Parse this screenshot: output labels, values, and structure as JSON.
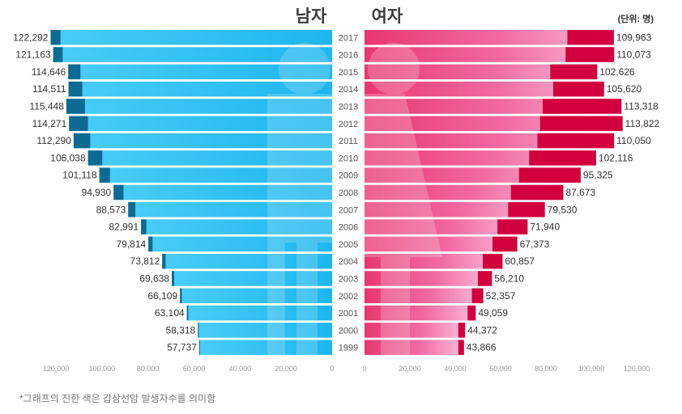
{
  "chart_data": {
    "type": "bar",
    "orientation": "horizontal-butterfly",
    "title_left": "남자",
    "title_right": "여자",
    "unit_label": "(단위: 명)",
    "footnote": "*그래프의 진한 색은 갑상선암 발생자수를 의미함",
    "categories": [
      "2017",
      "2016",
      "2015",
      "2014",
      "2013",
      "2012",
      "2011",
      "2010",
      "2009",
      "2008",
      "2007",
      "2006",
      "2005",
      "2004",
      "2003",
      "2002",
      "2001",
      "2000",
      "1999"
    ],
    "series": [
      {
        "name": "남자",
        "color": "#36c5f4",
        "dark_color": "#0d6a92",
        "values": [
          122292,
          121163,
          114646,
          114511,
          115448,
          114271,
          112290,
          106038,
          101118,
          94930,
          88573,
          82991,
          79814,
          73812,
          69638,
          66109,
          63104,
          58318,
          57737
        ],
        "labels": [
          "122,292",
          "121,163",
          "114,646",
          "114,511",
          "115,448",
          "114,271",
          "112,290",
          "106,038",
          "101,118",
          "94,930",
          "88,573",
          "82,991",
          "79,814",
          "73,812",
          "69,638",
          "66,109",
          "63,104",
          "58,318",
          "57,737"
        ],
        "thyroid_values": [
          4300,
          4100,
          5300,
          6000,
          8100,
          8200,
          7200,
          6200,
          4600,
          4300,
          3100,
          2300,
          1800,
          1500,
          1000,
          800,
          600,
          400,
          300
        ]
      },
      {
        "name": "여자",
        "color": "#f9a0c8",
        "dark_color": "#d2003f",
        "values": [
          109963,
          110073,
          102626,
          105620,
          113318,
          113822,
          110050,
          102116,
          95325,
          87673,
          79530,
          71940,
          67373,
          60857,
          56210,
          52357,
          49059,
          44372,
          43866
        ],
        "labels": [
          "109,963",
          "110,073",
          "102,626",
          "105,620",
          "113,318",
          "113,822",
          "110,050",
          "102,116",
          "95,325",
          "87,673",
          "79,530",
          "71,940",
          "67,373",
          "60,857",
          "56,210",
          "52,357",
          "49,059",
          "44,372",
          "43,866"
        ],
        "thyroid_values": [
          20500,
          21400,
          20700,
          22400,
          34700,
          36400,
          33800,
          29500,
          27200,
          23100,
          16200,
          13300,
          10900,
          8700,
          6200,
          5000,
          3600,
          3000,
          2500
        ]
      }
    ],
    "left_axis": {
      "ticks": [
        120000,
        100000,
        80000,
        60000,
        40000,
        20000,
        0
      ],
      "tick_labels": [
        "120,000",
        "100,000",
        "80,000",
        "60,000",
        "40,000",
        "20,000",
        "0"
      ],
      "range": [
        0,
        120000
      ]
    },
    "right_axis": {
      "ticks": [
        0,
        20000,
        40000,
        60000,
        80000,
        100000,
        120000
      ],
      "tick_labels": [
        "0",
        "20,000",
        "40,000",
        "60,000",
        "80,000",
        "100,000",
        "120,000"
      ],
      "range": [
        0,
        120000
      ]
    }
  }
}
